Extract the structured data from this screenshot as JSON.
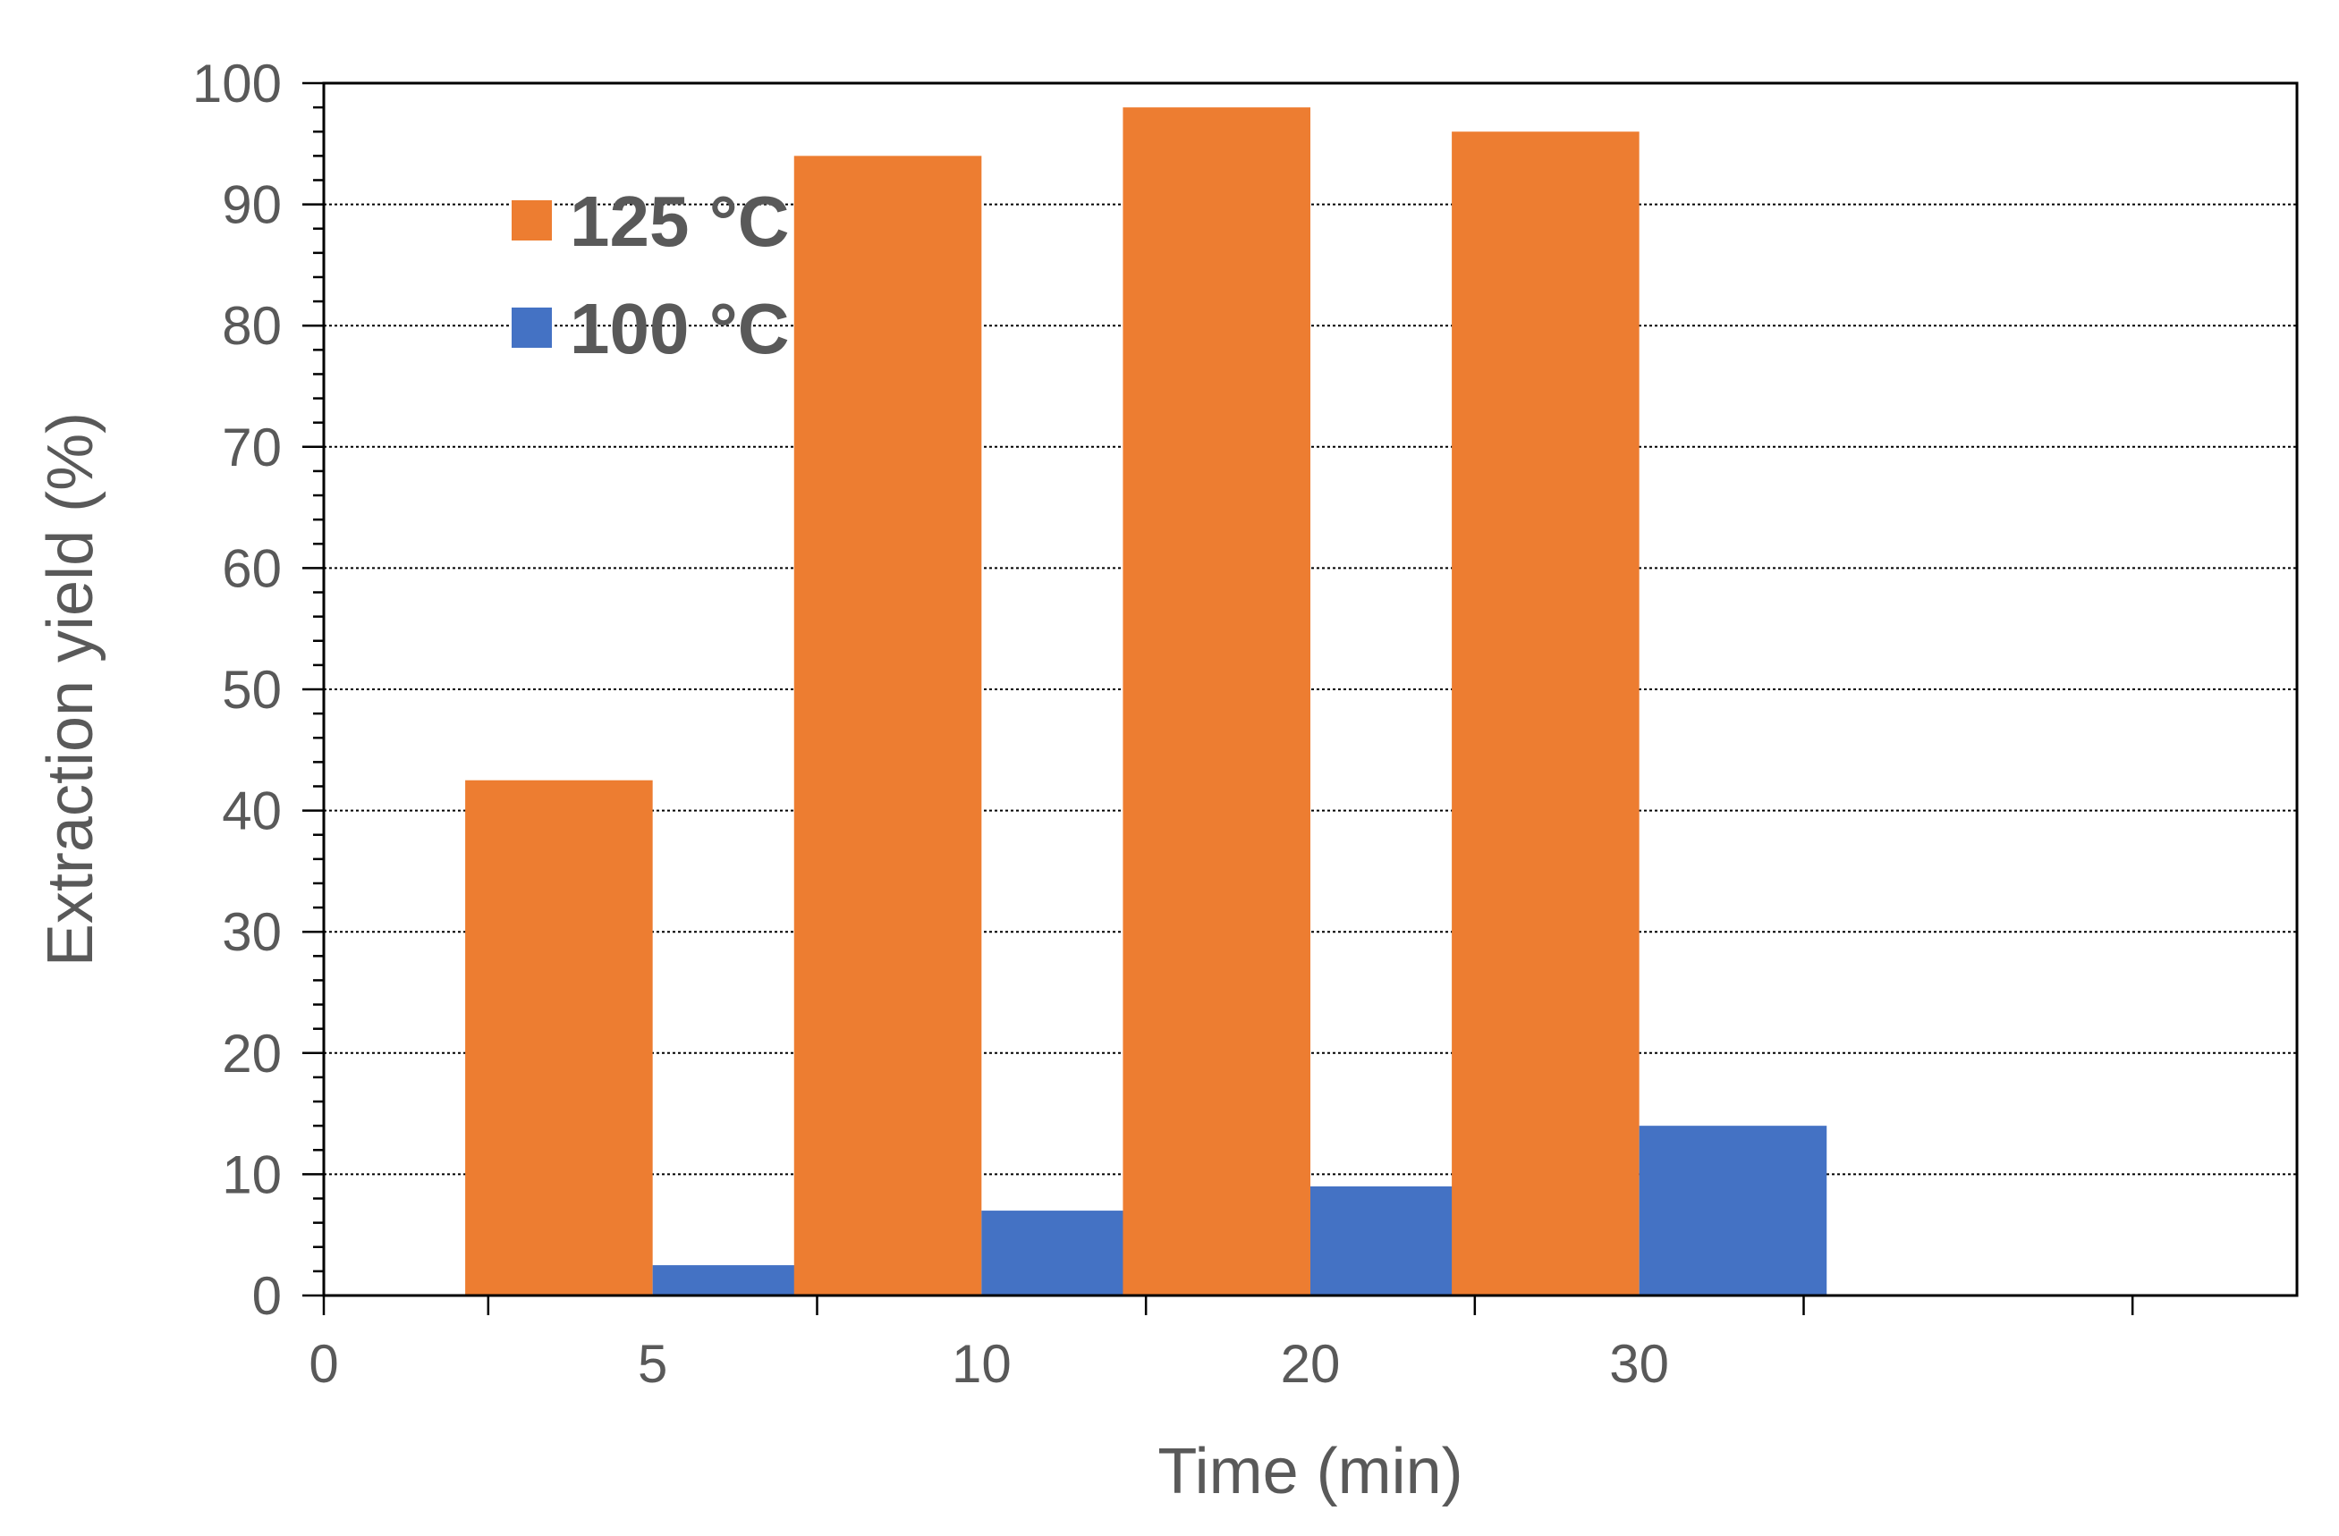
{
  "chart_data": {
    "type": "bar",
    "x_tick_labels": [
      "0",
      "5",
      "10",
      "20",
      "30",
      ""
    ],
    "categories": [
      "5",
      "10",
      "20",
      "30"
    ],
    "series": [
      {
        "name": "125 °C",
        "color": "#ED7D31",
        "values": [
          42.5,
          94,
          98,
          96
        ]
      },
      {
        "name": "100 °C",
        "color": "#4472C4",
        "values": [
          2.5,
          7,
          9,
          14
        ]
      }
    ],
    "xlabel": "Time (min)",
    "ylabel": "Extraction yield (%)",
    "ylim": [
      0,
      100
    ],
    "y_major_step": 10,
    "y_minor_step": 2,
    "y_tick_labels": [
      "0",
      "10",
      "20",
      "30",
      "40",
      "50",
      "60",
      "70",
      "80",
      "90",
      "100"
    ],
    "grid": true,
    "grid_style": "dotted",
    "legend_position": "top-left"
  }
}
